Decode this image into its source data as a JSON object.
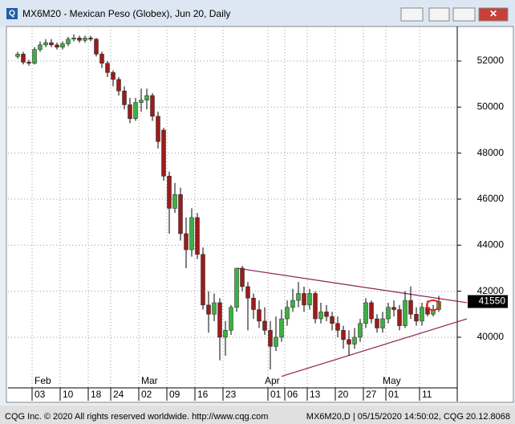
{
  "window_title": "MX6M20 - Mexican Peso (Globex), Jun 20, Daily",
  "footer": {
    "left": "CQG Inc. © 2020 All rights reserved worldwide. http://www.cqg.com",
    "right": "MX6M20,D | 05/15/2020 14:50:02, CQG 20.12.8068"
  },
  "chart_data": {
    "type": "candlestick",
    "categories": [
      null,
      null,
      null,
      "03",
      null,
      null,
      null,
      null,
      "10",
      null,
      null,
      null,
      null,
      "18",
      null,
      null,
      null,
      "24",
      null,
      null,
      null,
      null,
      "02",
      null,
      null,
      null,
      null,
      "09",
      null,
      null,
      null,
      null,
      "16",
      null,
      null,
      null,
      null,
      "23",
      null,
      null,
      null,
      null,
      null,
      null,
      null,
      "01",
      null,
      null,
      "06",
      null,
      null,
      null,
      "13",
      null,
      null,
      null,
      null,
      "20",
      null,
      null,
      null,
      null,
      "27",
      null,
      null,
      null,
      "01",
      null,
      null,
      null,
      null,
      null,
      "11",
      null,
      null,
      null,
      null
    ],
    "months": [
      null,
      null,
      null,
      "Feb",
      null,
      null,
      null,
      null,
      null,
      null,
      null,
      null,
      null,
      null,
      null,
      null,
      null,
      null,
      null,
      null,
      null,
      null,
      "Mar",
      null,
      null,
      null,
      null,
      null,
      null,
      null,
      null,
      null,
      null,
      null,
      null,
      null,
      null,
      null,
      null,
      null,
      null,
      null,
      null,
      null,
      "Apr",
      null,
      null,
      null,
      null,
      null,
      null,
      null,
      null,
      null,
      null,
      null,
      null,
      null,
      null,
      null,
      null,
      null,
      null,
      null,
      null,
      "May",
      null,
      null,
      null,
      null,
      null,
      null,
      null,
      null,
      null,
      null
    ],
    "open": [
      52200,
      52300,
      51950,
      51900,
      52500,
      52700,
      52800,
      52700,
      52600,
      52750,
      52950,
      53000,
      52900,
      53000,
      52950,
      52300,
      51900,
      51500,
      51200,
      50700,
      50100,
      49500,
      50200,
      50300,
      50500,
      49600,
      49000,
      47000,
      45600,
      46200,
      44500,
      43800,
      45200,
      43600,
      41400,
      41000,
      41500,
      40000,
      40300,
      41300,
      43000,
      42200,
      41700,
      41200,
      40700,
      40300,
      39600,
      40000,
      40800,
      41300,
      41600,
      41900,
      41400,
      41900,
      40800,
      41100,
      40900,
      40600,
      40300,
      39900,
      39700,
      40000,
      40600,
      41500,
      40800,
      40400,
      40800,
      41300,
      41200,
      40500,
      41600,
      41000,
      40700,
      41300,
      41000,
      41200
    ],
    "high": [
      52400,
      52400,
      52050,
      52600,
      52850,
      52950,
      52950,
      52800,
      52850,
      53050,
      53150,
      53100,
      53100,
      53100,
      53000,
      52400,
      52000,
      51600,
      51300,
      50900,
      50400,
      50400,
      50800,
      50800,
      50600,
      49800,
      49100,
      47200,
      46700,
      46500,
      45200,
      45600,
      45400,
      43900,
      42000,
      41900,
      41700,
      40700,
      41400,
      43000,
      43100,
      42400,
      41900,
      41600,
      41300,
      40700,
      40900,
      41200,
      41600,
      42100,
      42400,
      42200,
      42100,
      42000,
      41500,
      41400,
      41100,
      40900,
      40500,
      40300,
      40400,
      40800,
      41700,
      41600,
      41000,
      41100,
      41500,
      41600,
      41400,
      42000,
      42200,
      41300,
      41500,
      41600,
      41400,
      41800
    ],
    "low": [
      52100,
      51850,
      51800,
      51850,
      52400,
      52600,
      52600,
      52500,
      52500,
      52650,
      52850,
      52800,
      52800,
      52850,
      52200,
      51700,
      51300,
      50900,
      50500,
      49900,
      49300,
      49400,
      49800,
      49900,
      49400,
      48200,
      46800,
      44500,
      45400,
      44200,
      43000,
      43500,
      43400,
      41200,
      40200,
      40700,
      39000,
      39200,
      40100,
      41100,
      42000,
      40300,
      40800,
      40400,
      40100,
      38600,
      39400,
      39800,
      40500,
      41100,
      41300,
      41100,
      41200,
      40600,
      40600,
      40700,
      40300,
      40000,
      39500,
      39200,
      39500,
      39800,
      40400,
      40600,
      40200,
      40200,
      40600,
      40900,
      40300,
      40400,
      40800,
      40500,
      40500,
      40900,
      40900,
      41100
    ],
    "close": [
      52300,
      51950,
      51900,
      52500,
      52700,
      52800,
      52700,
      52600,
      52750,
      52950,
      53000,
      52900,
      53000,
      52950,
      52300,
      51900,
      51500,
      51200,
      50700,
      50100,
      49500,
      50200,
      50300,
      50500,
      49600,
      48500,
      47000,
      45600,
      46200,
      44500,
      43800,
      45200,
      43600,
      41400,
      41000,
      41500,
      40000,
      40300,
      41300,
      43000,
      42200,
      41700,
      41200,
      40700,
      40300,
      39600,
      40000,
      40800,
      41300,
      41600,
      41900,
      41400,
      41900,
      40800,
      41100,
      40900,
      40600,
      40300,
      39900,
      39700,
      40000,
      40600,
      41500,
      40800,
      40400,
      40800,
      41300,
      41200,
      40500,
      41600,
      41000,
      40700,
      41300,
      41000,
      41200,
      41550
    ],
    "up_color": "#3cb043",
    "down_color": "#9b1c1c",
    "last_price": 41550,
    "trendlines": [
      {
        "x": [
          39,
          80
        ],
        "y": [
          43000,
          41500
        ],
        "color": "#8b2252"
      },
      {
        "x": [
          47,
          80
        ],
        "y": [
          38300,
          40800
        ],
        "color": "#8b2252"
      }
    ],
    "ylim": [
      37800,
      53500
    ],
    "yticks": [
      40000,
      42000,
      44000,
      46000,
      48000,
      50000,
      52000
    ],
    "grid": true
  }
}
